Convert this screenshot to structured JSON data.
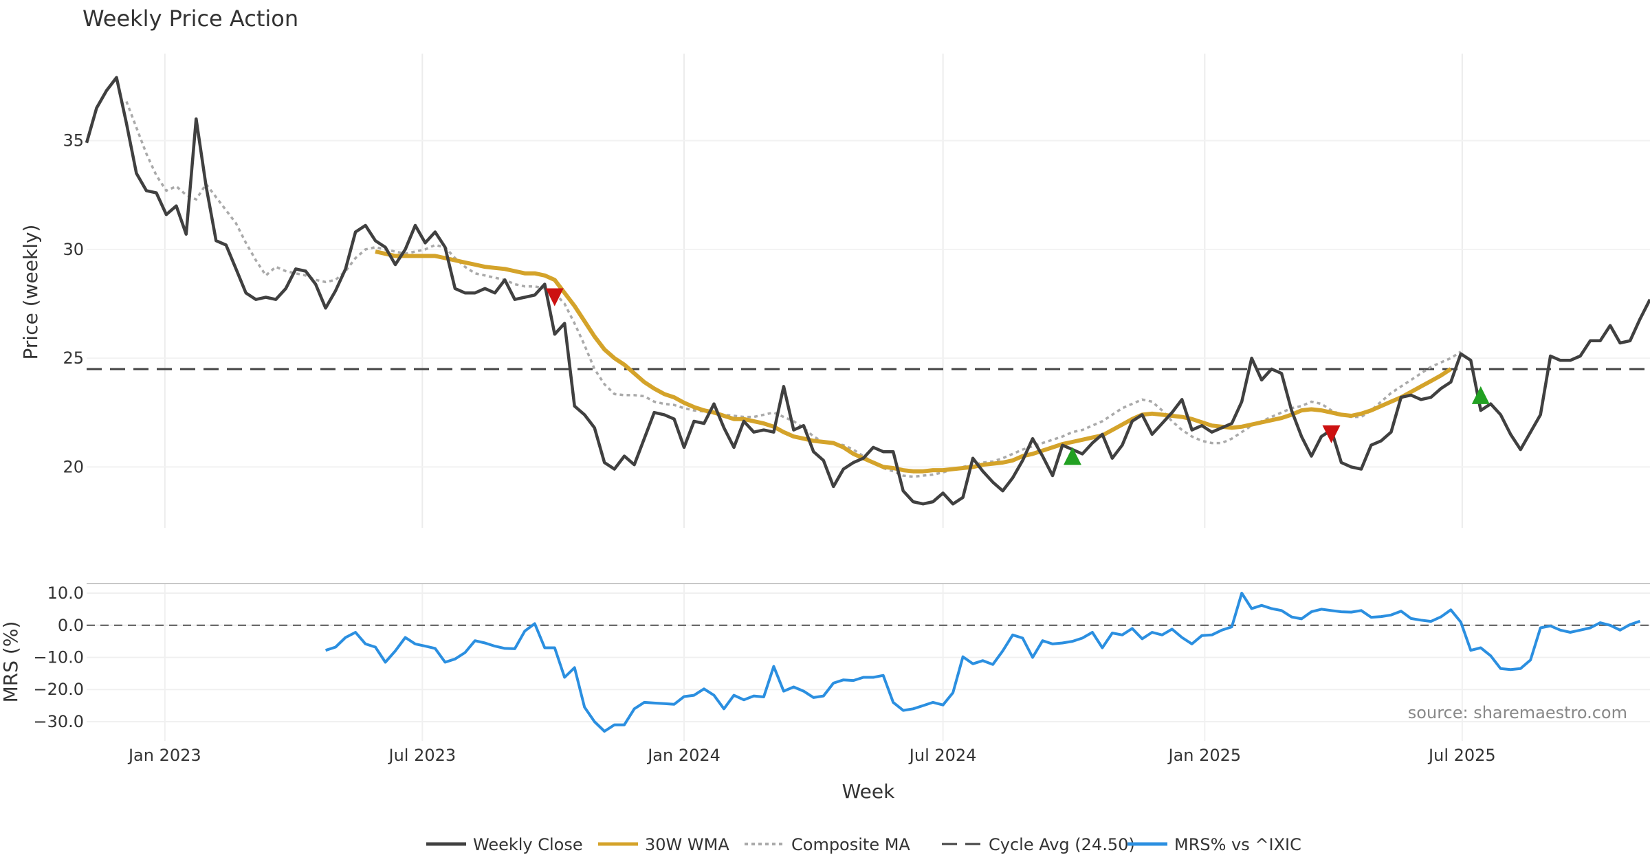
{
  "chart_data": [
    {
      "type": "line",
      "title": "Weekly Price Action",
      "ylabel": "Price (weekly)",
      "ylim": [
        17.2,
        39.0
      ],
      "yticks": [
        20,
        25,
        30,
        35
      ],
      "x_start": "2022-11-07",
      "x_step_days": 7,
      "series": [
        {
          "name": "Weekly Close",
          "color": "#404040",
          "values": [
            34.9,
            36.5,
            37.3,
            37.9,
            35.8,
            33.5,
            32.7,
            32.6,
            31.6,
            32.0,
            30.7,
            36.0,
            32.9,
            30.4,
            30.2,
            29.1,
            28.0,
            27.7,
            27.8,
            27.7,
            28.2,
            29.1,
            29.0,
            28.4,
            27.3,
            28.1,
            29.1,
            30.8,
            31.1,
            30.4,
            30.1,
            29.3,
            30.0,
            31.1,
            30.3,
            30.8,
            30.1,
            28.2,
            28.0,
            28.0,
            28.2,
            28.0,
            28.6,
            27.7,
            27.8,
            27.9,
            28.4,
            26.1,
            26.6,
            22.8,
            22.4,
            21.8,
            20.2,
            19.9,
            20.5,
            20.1,
            21.3,
            22.5,
            22.4,
            22.2,
            20.9,
            22.1,
            22.0,
            22.9,
            21.8,
            20.9,
            22.1,
            21.6,
            21.7,
            21.6,
            23.7,
            21.7,
            21.9,
            20.7,
            20.3,
            19.1,
            19.9,
            20.2,
            20.4,
            20.9,
            20.7,
            20.7,
            18.9,
            18.4,
            18.3,
            18.4,
            18.8,
            18.3,
            18.6,
            20.4,
            19.8,
            19.3,
            18.9,
            19.5,
            20.3,
            21.3,
            20.5,
            19.6,
            21.0,
            20.8,
            20.6,
            21.1,
            21.5,
            20.4,
            21.0,
            22.1,
            22.4,
            21.5,
            22.0,
            22.5,
            23.1,
            21.7,
            21.9,
            21.6,
            21.8,
            22.0,
            23.0,
            25.0,
            24.0,
            24.5,
            24.3,
            22.6,
            21.4,
            20.5,
            21.4,
            21.7,
            20.2,
            20.0,
            19.9,
            21.0,
            21.2,
            21.6,
            23.2,
            23.3,
            23.1,
            23.2,
            23.6,
            23.9,
            25.2,
            24.9,
            22.6,
            22.9,
            22.4,
            21.5,
            20.8,
            21.6,
            22.4,
            25.1,
            24.9,
            24.9,
            25.1,
            25.8,
            25.8,
            26.5,
            25.7,
            25.8,
            26.8,
            27.7
          ]
        },
        {
          "name": "30W WMA",
          "color": "#d4a32a",
          "values": [
            null,
            null,
            null,
            null,
            null,
            null,
            null,
            null,
            null,
            null,
            null,
            null,
            null,
            null,
            null,
            null,
            null,
            null,
            null,
            null,
            null,
            null,
            null,
            null,
            null,
            null,
            null,
            null,
            null,
            29.9,
            29.8,
            29.7,
            29.7,
            29.7,
            29.7,
            29.7,
            29.6,
            29.5,
            29.4,
            29.3,
            29.2,
            29.15,
            29.1,
            29.0,
            28.9,
            28.9,
            28.8,
            28.6,
            28.0,
            27.4,
            26.7,
            26.0,
            25.4,
            25.0,
            24.7,
            24.3,
            23.9,
            23.6,
            23.35,
            23.2,
            22.95,
            22.75,
            22.6,
            22.5,
            22.35,
            22.2,
            22.2,
            22.1,
            22.0,
            21.85,
            21.6,
            21.4,
            21.3,
            21.2,
            21.15,
            21.1,
            20.9,
            20.6,
            20.4,
            20.2,
            20.0,
            19.95,
            19.85,
            19.8,
            19.8,
            19.85,
            19.85,
            19.9,
            19.95,
            20.0,
            20.1,
            20.15,
            20.2,
            20.3,
            20.5,
            20.6,
            20.75,
            20.9,
            21.05,
            21.15,
            21.25,
            21.35,
            21.45,
            21.7,
            21.95,
            22.2,
            22.4,
            22.45,
            22.4,
            22.35,
            22.3,
            22.2,
            22.05,
            21.9,
            21.85,
            21.8,
            21.85,
            21.95,
            22.05,
            22.15,
            22.25,
            22.4,
            22.6,
            22.65,
            22.6,
            22.5,
            22.4,
            22.35,
            22.45,
            22.6,
            22.8,
            23.0,
            23.2,
            23.45,
            23.7,
            23.95,
            24.2,
            24.5
          ]
        },
        {
          "name": "Composite MA",
          "color": "#aaaaaa",
          "values": [
            null,
            null,
            null,
            null,
            36.8,
            35.6,
            34.4,
            33.4,
            32.7,
            32.9,
            32.5,
            32.3,
            33.0,
            32.4,
            31.8,
            31.2,
            30.3,
            29.5,
            28.8,
            29.2,
            29.0,
            28.9,
            28.8,
            28.6,
            28.5,
            28.6,
            29.0,
            29.6,
            30.0,
            30.1,
            30.0,
            29.9,
            29.8,
            29.9,
            30.0,
            30.2,
            30.1,
            29.6,
            29.2,
            28.9,
            28.8,
            28.7,
            28.6,
            28.4,
            28.3,
            28.3,
            28.2,
            28.0,
            27.5,
            26.6,
            25.6,
            24.5,
            23.8,
            23.35,
            23.3,
            23.3,
            23.25,
            23.0,
            22.9,
            22.85,
            22.7,
            22.6,
            22.55,
            22.45,
            22.4,
            22.35,
            22.3,
            22.3,
            22.4,
            22.5,
            22.3,
            22.1,
            21.8,
            21.4,
            21.15,
            21.1,
            21.0,
            20.8,
            20.5,
            20.2,
            19.95,
            19.8,
            19.6,
            19.55,
            19.6,
            19.65,
            19.75,
            19.9,
            20.0,
            20.1,
            20.2,
            20.25,
            20.4,
            20.6,
            20.8,
            20.95,
            21.1,
            21.25,
            21.4,
            21.6,
            21.7,
            21.9,
            22.1,
            22.4,
            22.7,
            22.9,
            23.1,
            23.0,
            22.6,
            22.1,
            21.7,
            21.4,
            21.2,
            21.1,
            21.1,
            21.3,
            21.6,
            21.9,
            22.1,
            22.3,
            22.5,
            22.7,
            22.8,
            23.0,
            22.9,
            22.6,
            22.4,
            22.3,
            22.3,
            22.6,
            23.0,
            23.4,
            23.7,
            24.0,
            24.3,
            24.6,
            24.8,
            25.0,
            25.3
          ]
        },
        {
          "name": "Cycle Avg (24.50)",
          "color": "#444444",
          "constant": 24.5
        }
      ],
      "markers": [
        {
          "kind": "sell",
          "week": 47,
          "value": 27.8,
          "color": "#cc1111"
        },
        {
          "kind": "buy",
          "week": 99,
          "value": 20.5,
          "color": "#22a022"
        },
        {
          "kind": "sell",
          "week": 125,
          "value": 21.5,
          "color": "#cc1111"
        },
        {
          "kind": "buy",
          "week": 140,
          "value": 23.3,
          "color": "#22a022"
        }
      ]
    },
    {
      "type": "line",
      "ylabel": "MRS (%)",
      "ylim": [
        -36.0,
        13.0
      ],
      "yticks": [
        10.0,
        0.0,
        -10.0,
        -20.0,
        -30.0
      ],
      "ytick_labels": [
        "10.0",
        "0.0",
        "−10.0",
        "−20.0",
        "−30.0"
      ],
      "xlabel": "Week",
      "xtick_labels": [
        "Jan 2023",
        "Jul 2023",
        "Jan 2024",
        "Jul 2024",
        "Jan 2025",
        "Jul 2025"
      ],
      "xtick_dates": [
        "2023-01-01",
        "2023-07-01",
        "2024-01-01",
        "2024-07-01",
        "2025-01-01",
        "2025-07-01"
      ],
      "reference_line": 0,
      "series": [
        {
          "name": "MRS% vs ^IXIC",
          "color": "#2b8fe0",
          "start_week": 24,
          "values": [
            -7.8,
            -6.8,
            -3.8,
            -2.2,
            -5.8,
            -6.8,
            -11.5,
            -8.0,
            -3.8,
            -5.8,
            -6.5,
            -7.2,
            -11.5,
            -10.5,
            -8.5,
            -4.8,
            -5.5,
            -6.5,
            -7.2,
            -7.3,
            -1.8,
            0.5,
            -7.0,
            -7.0,
            -16.2,
            -13.2,
            -25.5,
            -30.0,
            -33.0,
            -31.0,
            -31.0,
            -26.0,
            -24.0,
            -24.2,
            -24.4,
            -24.6,
            -22.2,
            -21.8,
            -19.8,
            -21.8,
            -26.0,
            -21.8,
            -23.2,
            -22.0,
            -22.3,
            -12.8,
            -20.5,
            -19.2,
            -20.5,
            -22.5,
            -22.0,
            -18.0,
            -17.0,
            -17.2,
            -16.2,
            -16.2,
            -15.6,
            -24.0,
            -26.5,
            -26.0,
            -25.0,
            -24.0,
            -24.8,
            -21.0,
            -9.8,
            -12.0,
            -11.0,
            -12.2,
            -8.0,
            -3.0,
            -4.0,
            -10.0,
            -4.8,
            -5.8,
            -5.5,
            -5.0,
            -4.0,
            -2.2,
            -7.0,
            -2.4,
            -3.0,
            -1.0,
            -4.2,
            -2.2,
            -3.0,
            -1.2,
            -3.8,
            -5.8,
            -3.2,
            -3.0,
            -1.5,
            -0.5,
            10.0,
            5.2,
            6.2,
            5.2,
            4.6,
            2.6,
            2.0,
            4.2,
            5.0,
            4.6,
            4.2,
            4.1,
            4.6,
            2.5,
            2.7,
            3.2,
            4.4,
            2.1,
            1.6,
            1.2,
            2.6,
            4.8,
            1.0,
            -7.8,
            -7.0,
            -9.5,
            -13.5,
            -13.8,
            -13.5,
            -10.8,
            -0.8,
            -0.2,
            -1.5,
            -2.2,
            -1.5,
            -0.8,
            0.8,
            0.0,
            -1.5,
            0.2,
            1.3
          ]
        }
      ],
      "annotation": "source: sharemaestro.com"
    }
  ],
  "legend": [
    {
      "label": "Weekly Close",
      "style": "solid",
      "color": "#404040"
    },
    {
      "label": "30W WMA",
      "style": "solid",
      "color": "#d4a32a"
    },
    {
      "label": "Composite MA",
      "style": "dotted",
      "color": "#aaaaaa"
    },
    {
      "label": "Cycle Avg (24.50)",
      "style": "dashed",
      "color": "#444444"
    },
    {
      "label": "MRS% vs ^IXIC",
      "style": "solid",
      "color": "#2b8fe0"
    }
  ]
}
